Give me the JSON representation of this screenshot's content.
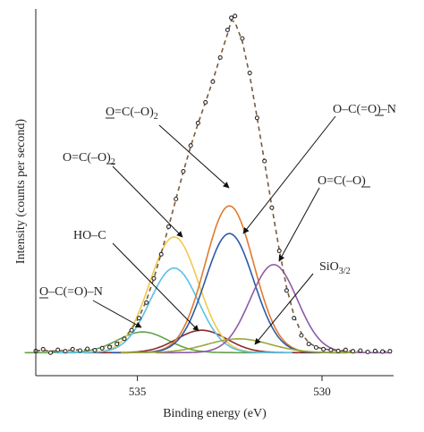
{
  "chart_data": {
    "type": "line",
    "title": "",
    "xlabel": "Binding energy (eV)",
    "ylabel": "Intensity (counts per second)",
    "xlim": [
      537.5,
      527.8
    ],
    "x_reversed": true,
    "ylim": [
      0,
      1
    ],
    "y_ticks_shown": false,
    "grid": false,
    "legend": "none",
    "x_ticks": [
      {
        "value": 535,
        "label": "535"
      },
      {
        "value": 530,
        "label": "530"
      }
    ],
    "baseline": 0.02,
    "measured": {
      "name": "",
      "color": "#2b2b2b",
      "style": "open circles",
      "points": [
        [
          537.5,
          0.025
        ],
        [
          537.3,
          0.03
        ],
        [
          537.1,
          0.02
        ],
        [
          536.9,
          0.028
        ],
        [
          536.7,
          0.024
        ],
        [
          536.5,
          0.03
        ],
        [
          536.3,
          0.026
        ],
        [
          536.1,
          0.031
        ],
        [
          535.9,
          0.027
        ],
        [
          535.7,
          0.033
        ],
        [
          535.5,
          0.036
        ],
        [
          535.3,
          0.045
        ],
        [
          535.1,
          0.06
        ],
        [
          534.9,
          0.085
        ],
        [
          534.7,
          0.12
        ],
        [
          534.5,
          0.165
        ],
        [
          534.3,
          0.235
        ],
        [
          534.1,
          0.305
        ],
        [
          533.9,
          0.385
        ],
        [
          533.7,
          0.465
        ],
        [
          533.5,
          0.545
        ],
        [
          533.3,
          0.62
        ],
        [
          533.1,
          0.685
        ],
        [
          532.9,
          0.745
        ],
        [
          532.7,
          0.805
        ],
        [
          532.5,
          0.875
        ],
        [
          532.3,
          0.955
        ],
        [
          532.2,
          0.99
        ],
        [
          532.1,
          0.995
        ],
        [
          531.9,
          0.93
        ],
        [
          531.7,
          0.83
        ],
        [
          531.5,
          0.7
        ],
        [
          531.3,
          0.575
        ],
        [
          531.1,
          0.44
        ],
        [
          530.9,
          0.315
        ],
        [
          530.7,
          0.2
        ],
        [
          530.5,
          0.12
        ],
        [
          530.3,
          0.07
        ],
        [
          530.1,
          0.045
        ],
        [
          529.9,
          0.035
        ],
        [
          529.7,
          0.03
        ],
        [
          529.5,
          0.028
        ],
        [
          529.3,
          0.025
        ],
        [
          529.1,
          0.028
        ],
        [
          528.9,
          0.024
        ],
        [
          528.7,
          0.026
        ],
        [
          528.5,
          0.022
        ],
        [
          528.3,
          0.025
        ],
        [
          528.1,
          0.023
        ],
        [
          527.9,
          0.024
        ]
      ]
    },
    "envelope": {
      "name": "",
      "color": "#7a5a3a",
      "style": "dashed"
    },
    "components": [
      {
        "label_main": "O–C(=O)–N",
        "underline": "O",
        "center": 534.6,
        "height": 0.06,
        "fwhm": 1.6,
        "color": "#63a14a"
      },
      {
        "label_main": "HO–C",
        "center": 533.0,
        "height": 0.065,
        "fwhm": 1.6,
        "color": "#8b2a2a"
      },
      {
        "label_main": "O=C(–O)",
        "label_sub": "2",
        "underline": "O in (–O)",
        "center": 533.75,
        "height": 0.335,
        "fwhm": 1.55,
        "color": "#f0c94c"
      },
      {
        "label_main": "O=C(–O)",
        "label_sub": "2",
        "underline": "O=",
        "center": 533.75,
        "height": 0.245,
        "fwhm": 1.55,
        "color": "#5bc0e6"
      },
      {
        "label_main": "O=C(–O)",
        "label_sub": "2",
        "underline": "O=",
        "center": 532.25,
        "height": 0.425,
        "fwhm": 1.55,
        "color": "#e07b2f"
      },
      {
        "label_main": "O–C(=O)–N",
        "underline": "O in (=O)",
        "center": 532.25,
        "height": 0.345,
        "fwhm": 1.55,
        "color": "#2e5aa8"
      },
      {
        "label_main": "O=C(–O)",
        "underline": "O in (–O)",
        "center": 531.05,
        "height": 0.255,
        "fwhm": 1.5,
        "color": "#8e5ba6"
      },
      {
        "label_main": "SiO",
        "label_sub": "3/2",
        "center": 532.0,
        "height": 0.04,
        "fwhm": 2.0,
        "color": "#9aa83a"
      }
    ]
  },
  "annotations": {
    "ocoon_left": "O–C(=O)–N",
    "hoc": "HO–C",
    "oco2_left_main": "O=C(–O)",
    "oco2_left_sub": "2",
    "oco2_top_main": "O=C(–O)",
    "oco2_top_sub": "2",
    "ocoon_right": "O–C(=O)–N",
    "oco_right": "O=C(–O)",
    "sio_main": "SiO",
    "sio_sub": "3/2"
  }
}
